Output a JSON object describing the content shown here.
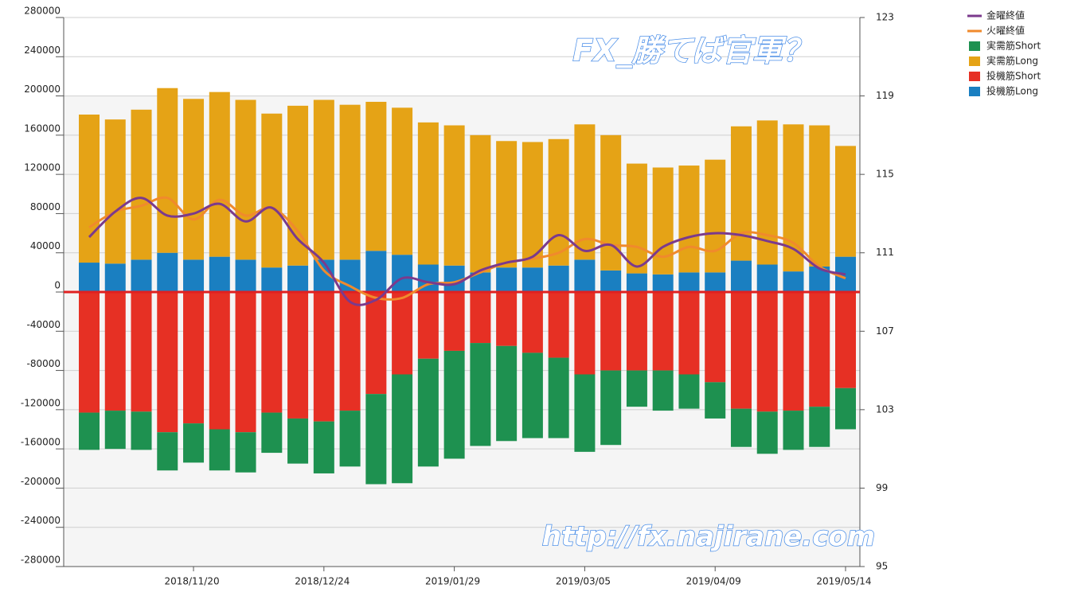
{
  "chart_data": {
    "type": "bar",
    "categories": [
      null,
      null,
      null,
      null,
      "2018/11/20",
      null,
      null,
      null,
      null,
      "2018/12/24",
      null,
      null,
      null,
      null,
      "2019/01/29",
      null,
      null,
      null,
      null,
      "2019/03/05",
      null,
      null,
      null,
      null,
      "2019/04/09",
      null,
      null,
      null,
      null,
      "2019/05/14"
    ],
    "series": [
      {
        "name": "金曜終値",
        "type": "line",
        "axis": "y2",
        "color": "#7b3a8c",
        "values": [
          111.8,
          113.1,
          113.8,
          112.9,
          113.0,
          113.5,
          112.6,
          113.3,
          111.7,
          110.5,
          108.5,
          108.6,
          109.7,
          109.5,
          109.4,
          110.1,
          110.5,
          110.8,
          111.9,
          111.1,
          111.4,
          110.3,
          111.3,
          111.8,
          112.0,
          111.9,
          111.6,
          111.2,
          110.2,
          109.9
        ]
      },
      {
        "name": "火曜終値",
        "type": "line",
        "axis": "y2",
        "color": "#f08a2c",
        "values": [
          112.3,
          113.1,
          113.4,
          113.8,
          112.7,
          113.7,
          112.9,
          113.3,
          112.1,
          110.1,
          109.3,
          108.7,
          108.7,
          109.4,
          109.5,
          110.0,
          110.5,
          110.7,
          111.0,
          111.7,
          111.4,
          111.3,
          110.8,
          111.3,
          111.1,
          112.0,
          111.9,
          111.5,
          110.3,
          109.7
        ]
      },
      {
        "name": "実需筋Short",
        "type": "bar",
        "color": "#1e9150",
        "values": [
          -38000,
          -39000,
          -39000,
          -39000,
          -40000,
          -42000,
          -41000,
          -41000,
          -46000,
          -53000,
          -57000,
          -92000,
          -111000,
          -110000,
          -110000,
          -105000,
          -97000,
          -87000,
          -82000,
          -79000,
          -76000,
          -37000,
          -41000,
          -35000,
          -37000,
          -39000,
          -43000,
          -40000,
          -41000,
          -42000
        ]
      },
      {
        "name": "実需筋Long",
        "type": "bar",
        "color": "#e5a316",
        "values": [
          151000,
          147000,
          153000,
          168000,
          164000,
          168000,
          163000,
          157000,
          163000,
          163000,
          158000,
          152000,
          150000,
          145000,
          143000,
          140000,
          129000,
          128000,
          129000,
          138000,
          138000,
          112000,
          109000,
          109000,
          115000,
          137000,
          147000,
          150000,
          144000,
          113000
        ]
      },
      {
        "name": "投機筋Short",
        "type": "bar",
        "color": "#e63024",
        "values": [
          -123000,
          -121000,
          -122000,
          -143000,
          -134000,
          -140000,
          -143000,
          -123000,
          -129000,
          -132000,
          -121000,
          -104000,
          -84000,
          -68000,
          -60000,
          -52000,
          -55000,
          -62000,
          -67000,
          -84000,
          -80000,
          -80000,
          -80000,
          -84000,
          -92000,
          -119000,
          -122000,
          -121000,
          -117000,
          -98000
        ]
      },
      {
        "name": "投機筋Long",
        "type": "bar",
        "color": "#1a7fc1",
        "values": [
          30000,
          29000,
          33000,
          40000,
          33000,
          36000,
          33000,
          25000,
          27000,
          33000,
          33000,
          42000,
          38000,
          28000,
          27000,
          20000,
          25000,
          25000,
          27000,
          33000,
          22000,
          19000,
          18000,
          20000,
          20000,
          32000,
          28000,
          21000,
          26000,
          36000
        ]
      }
    ],
    "ylim": [
      -280000,
      280000
    ],
    "yticks": [
      -280000,
      -240000,
      -200000,
      -160000,
      -120000,
      -80000,
      -40000,
      0,
      40000,
      80000,
      120000,
      160000,
      200000,
      240000,
      280000
    ],
    "y2lim": [
      95,
      123
    ],
    "y2ticks": [
      95,
      99,
      103,
      107,
      111,
      115,
      119,
      123
    ],
    "grid": true,
    "legend": "top-right",
    "annotations": [
      "FX_勝てば官軍？",
      "http://fx.najirane.com"
    ]
  }
}
